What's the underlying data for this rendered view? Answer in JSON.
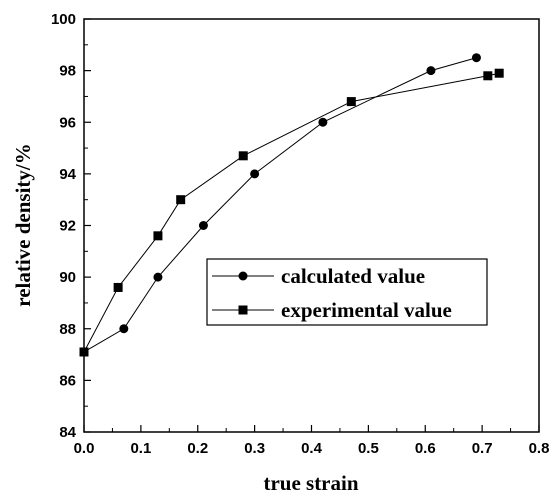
{
  "chart_data": {
    "type": "line",
    "xlabel": "true strain",
    "ylabel": "relative density/%",
    "xlim": [
      0.0,
      0.8
    ],
    "ylim": [
      84,
      100
    ],
    "xticks": [
      "0.0",
      "0.1",
      "0.2",
      "0.3",
      "0.4",
      "0.5",
      "0.6",
      "0.7",
      "0.8"
    ],
    "yticks": [
      "84",
      "86",
      "88",
      "90",
      "92",
      "94",
      "96",
      "98",
      "100"
    ],
    "grid": false,
    "legend_position": "lower-right",
    "series": [
      {
        "name": "calculated value",
        "marker": "circle",
        "color": "#000000",
        "x": [
          0.0,
          0.07,
          0.13,
          0.21,
          0.3,
          0.42,
          0.61,
          0.69
        ],
        "y": [
          87.1,
          88.0,
          90.0,
          92.0,
          94.0,
          96.0,
          98.0,
          98.5
        ]
      },
      {
        "name": "experimental value",
        "marker": "square",
        "color": "#000000",
        "x": [
          0.0,
          0.06,
          0.13,
          0.17,
          0.28,
          0.47,
          0.71,
          0.73
        ],
        "y": [
          87.1,
          89.6,
          91.6,
          93.0,
          94.7,
          96.8,
          97.8,
          97.9
        ]
      }
    ]
  }
}
